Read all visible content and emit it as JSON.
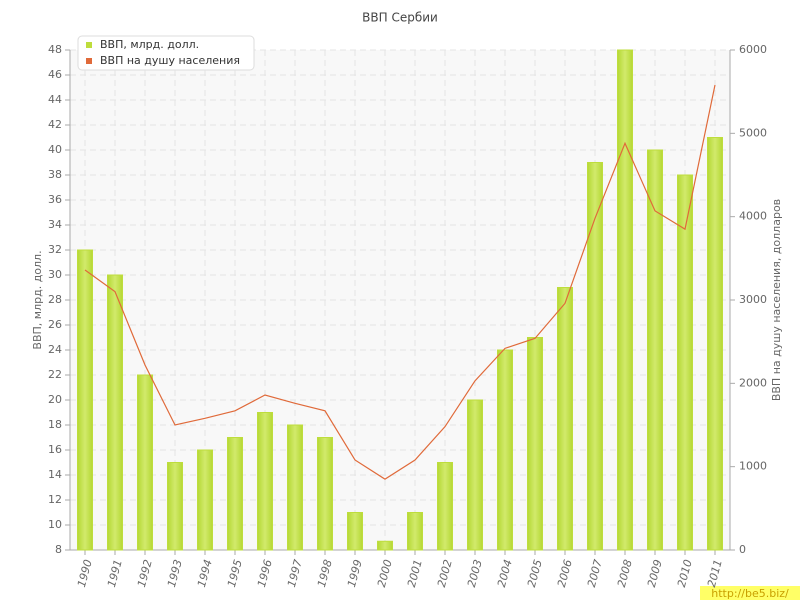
{
  "chart_data": {
    "type": "bar-line",
    "title": "ВВП Сербии",
    "y_label": "ВВП, млрд. долл.",
    "y2_label": "ВВП на душу населения, долларов",
    "watermark": "http://be5.biz/",
    "categories": [
      "1990",
      "1991",
      "1992",
      "1993",
      "1994",
      "1995",
      "1996",
      "1997",
      "1998",
      "1999",
      "2000",
      "2001",
      "2002",
      "2003",
      "2004",
      "2005",
      "2006",
      "2007",
      "2008",
      "2009",
      "2010",
      "2011"
    ],
    "series": [
      {
        "name": "ВВП, млрд. долл.",
        "color": "#bedd3c",
        "type": "bar",
        "values": [
          32,
          30,
          22,
          15,
          16,
          17,
          19,
          18,
          17,
          11,
          8.7,
          11,
          15,
          20,
          24,
          25,
          29,
          39,
          48,
          40,
          38,
          41
        ]
      },
      {
        "name": "ВВП на душу населения",
        "color": "#e06a3a",
        "type": "line",
        "axis": "y2",
        "values": [
          3360,
          3100,
          2220,
          1500,
          1580,
          1670,
          1860,
          1760,
          1670,
          1080,
          850,
          1080,
          1480,
          2030,
          2420,
          2540,
          2960,
          3980,
          4880,
          4070,
          3850,
          5580
        ]
      }
    ],
    "ylim": [
      8,
      48
    ],
    "yticks": [
      8,
      10,
      12,
      14,
      16,
      18,
      20,
      22,
      24,
      26,
      28,
      30,
      32,
      34,
      36,
      38,
      40,
      42,
      44,
      46,
      48
    ],
    "y2lim": [
      0,
      6000
    ],
    "y2ticks": [
      0,
      1000,
      2000,
      3000,
      4000,
      5000,
      6000
    ],
    "grid": true,
    "legend": "top-left"
  }
}
